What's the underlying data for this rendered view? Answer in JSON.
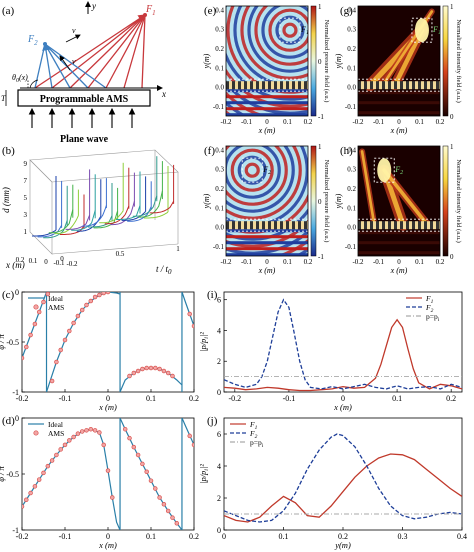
{
  "panel_letters": [
    "(a)",
    "(b)",
    "(c)",
    "(d)",
    "(e)",
    "(f)",
    "(g)",
    "(h)",
    "(i)",
    "(j)"
  ],
  "panel_a": {
    "ams_label": "Programmable AMS",
    "plane_wave_label": "Plane wave",
    "labels": {
      "y": "y",
      "x": "x",
      "v1": "v",
      "v2": "v",
      "F1": "F",
      "F1_sub": "1",
      "F2": "F",
      "F2_sub": "2",
      "theta": "θ",
      "theta_sub": "0",
      "theta_arg": "(x)",
      "T": "T"
    },
    "colors": {
      "F1": "#c8383c",
      "F2": "#3e7fc0"
    }
  },
  "panel_b": {
    "ylabel": "d (mm)",
    "yticks": [
      "1",
      "3",
      "5",
      "7",
      "9"
    ],
    "xlabel": "x (m)",
    "xticks": [
      "0.2",
      "0.1",
      "0",
      "-0.1",
      "-0.2"
    ],
    "tlabel": "t / t",
    "tlabel_sub": "0",
    "tticks": [
      "0",
      "0.5",
      "1"
    ]
  },
  "chart_data": [
    {
      "type": "line",
      "id": "c",
      "title": "",
      "xlabel": "x (m)",
      "ylabel": "φ / π",
      "xlim": [
        -0.2,
        0.2
      ],
      "ylim": [
        -1.0,
        0.0
      ],
      "xticks": [
        "-0.2",
        "-0.1",
        "0",
        "0.1",
        "0.2"
      ],
      "yticks": [
        "0",
        "-0.5",
        "-1"
      ],
      "legend": {
        "position": "top-left",
        "entries": [
          "Ideal",
          "AMS"
        ]
      },
      "series": [
        {
          "name": "Ideal",
          "style": "line",
          "color": "#2a7fa8",
          "segments": [
            {
              "x": [
                -0.215,
                -0.2,
                -0.18,
                -0.16,
                -0.143
              ],
              "y": [
                -0.82,
                -0.66,
                -0.43,
                -0.2,
                0.0
              ]
            },
            {
              "x": [
                -0.143,
                -0.12,
                -0.1,
                -0.08,
                -0.06,
                -0.04,
                -0.02,
                0.0,
                0.02,
                0.028
              ],
              "y": [
                -1.0,
                -0.7,
                -0.48,
                -0.31,
                -0.18,
                -0.09,
                -0.03,
                0.0,
                -0.01,
                -0.02
              ]
            },
            {
              "x": [
                0.028,
                0.04,
                0.06,
                0.08,
                0.1,
                0.12,
                0.14,
                0.16,
                0.172
              ],
              "y": [
                -1.0,
                -0.88,
                -0.81,
                -0.77,
                -0.76,
                -0.77,
                -0.81,
                -0.88,
                -0.93
              ]
            },
            {
              "x": [
                0.172,
                0.18,
                0.2,
                0.215
              ],
              "y": [
                -0.0,
                -0.1,
                -0.34,
                -0.52
              ]
            }
          ]
        },
        {
          "name": "AMS",
          "style": "marker",
          "color": "#d9534f",
          "x": [
            -0.2,
            -0.19,
            -0.18,
            -0.17,
            -0.16,
            -0.15,
            -0.14,
            -0.13,
            -0.12,
            -0.11,
            -0.1,
            -0.09,
            -0.08,
            -0.07,
            -0.06,
            -0.05,
            -0.04,
            -0.03,
            -0.02,
            -0.01,
            0.0,
            0.05,
            0.06,
            0.07,
            0.08,
            0.09,
            0.1,
            0.11,
            0.12,
            0.13,
            0.14,
            0.15,
            0.19,
            0.2
          ],
          "y": [
            -0.66,
            -0.55,
            -0.43,
            -0.32,
            -0.2,
            -0.1,
            -0.02,
            -0.89,
            -0.7,
            -0.58,
            -0.48,
            -0.39,
            -0.31,
            -0.24,
            -0.18,
            -0.13,
            -0.09,
            -0.05,
            -0.03,
            -0.01,
            0.0,
            -0.84,
            -0.81,
            -0.79,
            -0.77,
            -0.76,
            -0.76,
            -0.76,
            -0.77,
            -0.79,
            -0.81,
            -0.84,
            -0.22,
            -0.34
          ]
        }
      ]
    },
    {
      "type": "line",
      "id": "d",
      "title": "",
      "xlabel": "x (m)",
      "ylabel": "φ / π",
      "xlim": [
        -0.2,
        0.2
      ],
      "ylim": [
        -1.0,
        0.0
      ],
      "xticks": [
        "-0.2",
        "-0.1",
        "0",
        "0.1",
        "0.2"
      ],
      "yticks": [
        "0",
        "-0.5",
        "-1"
      ],
      "legend": {
        "position": "top-left",
        "entries": [
          "Ideal",
          "AMS"
        ]
      },
      "series": [
        {
          "name": "Ideal",
          "style": "line",
          "color": "#2a7fa8",
          "segments": [
            {
              "x": [
                -0.215,
                -0.2,
                -0.18,
                -0.16,
                -0.14,
                -0.12,
                -0.1,
                -0.08,
                -0.06,
                -0.04,
                -0.02,
                -0.01,
                0.0,
                0.01,
                0.02,
                0.028
              ],
              "y": [
                -0.88,
                -0.79,
                -0.67,
                -0.55,
                -0.43,
                -0.33,
                -0.24,
                -0.17,
                -0.12,
                -0.1,
                -0.13,
                -0.24,
                -0.47,
                -0.71,
                -0.93,
                -1.0
              ]
            },
            {
              "x": [
                0.028,
                0.04,
                0.06,
                0.08,
                0.1,
                0.12,
                0.14,
                0.16,
                0.172
              ],
              "y": [
                0.0,
                -0.1,
                -0.26,
                -0.41,
                -0.56,
                -0.71,
                -0.83,
                -0.94,
                -1.0
              ]
            },
            {
              "x": [
                0.172,
                0.18,
                0.2,
                0.215
              ],
              "y": [
                0.0,
                -0.07,
                -0.24,
                -0.37
              ]
            }
          ]
        },
        {
          "name": "AMS",
          "style": "marker",
          "color": "#d9534f",
          "x": [
            -0.2,
            -0.19,
            -0.18,
            -0.17,
            -0.16,
            -0.15,
            -0.14,
            -0.13,
            -0.12,
            -0.11,
            -0.1,
            -0.09,
            -0.08,
            -0.07,
            -0.06,
            -0.05,
            -0.04,
            -0.03,
            -0.02,
            -0.01,
            0.0,
            0.01,
            0.04,
            0.05,
            0.06,
            0.07,
            0.08,
            0.09,
            0.1,
            0.11,
            0.12,
            0.13,
            0.14,
            0.15,
            0.16,
            0.19,
            0.2
          ],
          "y": [
            -0.79,
            -0.73,
            -0.67,
            -0.61,
            -0.55,
            -0.49,
            -0.43,
            -0.38,
            -0.33,
            -0.28,
            -0.24,
            -0.2,
            -0.17,
            -0.14,
            -0.12,
            -0.11,
            -0.1,
            -0.11,
            -0.13,
            -0.24,
            -0.47,
            -0.71,
            -0.1,
            -0.18,
            -0.26,
            -0.33,
            -0.41,
            -0.48,
            -0.56,
            -0.63,
            -0.71,
            -0.77,
            -0.83,
            -0.89,
            -0.94,
            -0.16,
            -0.24
          ]
        }
      ]
    },
    {
      "type": "line",
      "id": "i",
      "title": "",
      "xlabel": "x (m)",
      "ylabel": "|p/p",
      "ylabel_sub": "i",
      "ylabel_sup": "|²",
      "xlim": [
        -0.22,
        0.22
      ],
      "ylim": [
        0,
        6.5
      ],
      "xticks": [
        "-0.2",
        "-0.1",
        "0",
        "0.1",
        "0.2"
      ],
      "yticks": [
        "0",
        "2",
        "4",
        "6"
      ],
      "legend": {
        "position": "top-right",
        "entries": [
          "F1",
          "F2",
          "p=p_i"
        ]
      },
      "series": [
        {
          "name": "F1",
          "style": "solid",
          "color": "#c0392b",
          "x": [
            -0.22,
            -0.2,
            -0.18,
            -0.16,
            -0.14,
            -0.12,
            -0.1,
            -0.08,
            -0.06,
            -0.04,
            -0.02,
            0.0,
            0.02,
            0.04,
            0.06,
            0.07,
            0.08,
            0.09,
            0.1,
            0.11,
            0.12,
            0.13,
            0.14,
            0.16,
            0.18,
            0.2,
            0.22
          ],
          "y": [
            0.3,
            0.25,
            0.15,
            0.2,
            0.3,
            0.25,
            0.15,
            0.1,
            0.1,
            0.15,
            0.2,
            0.35,
            0.25,
            0.3,
            0.9,
            1.8,
            3.0,
            4.2,
            4.7,
            4.2,
            2.8,
            1.5,
            0.6,
            0.2,
            0.5,
            0.4,
            0.2
          ]
        },
        {
          "name": "F2",
          "style": "dashed",
          "color": "#1f3f99",
          "x": [
            -0.22,
            -0.2,
            -0.18,
            -0.16,
            -0.15,
            -0.14,
            -0.13,
            -0.12,
            -0.11,
            -0.1,
            -0.09,
            -0.08,
            -0.07,
            -0.06,
            -0.04,
            -0.02,
            0.0,
            0.02,
            0.04,
            0.06,
            0.08,
            0.1,
            0.12,
            0.14,
            0.16,
            0.18,
            0.2,
            0.22
          ],
          "y": [
            0.8,
            0.5,
            0.3,
            0.5,
            1.0,
            2.0,
            3.6,
            5.2,
            6.0,
            5.5,
            3.8,
            2.0,
            0.8,
            0.3,
            0.2,
            0.35,
            0.2,
            0.35,
            0.5,
            0.3,
            0.2,
            0.4,
            0.2,
            0.3,
            0.35,
            0.2,
            0.5,
            0.3
          ]
        },
        {
          "name": "p=p_i",
          "style": "dashdot",
          "color": "#aaaaaa",
          "x": [
            -0.22,
            0.22
          ],
          "y": [
            1.0,
            1.0
          ]
        }
      ]
    },
    {
      "type": "line",
      "id": "j",
      "title": "",
      "xlabel": "y(m)",
      "ylabel": "|p/p",
      "ylabel_sub": "i",
      "ylabel_sup": "|²",
      "xlim": [
        0,
        0.4
      ],
      "ylim": [
        0,
        7
      ],
      "xticks": [
        "0",
        "0.1",
        "0.2",
        "0.3",
        "0.4"
      ],
      "yticks": [
        "0",
        "2",
        "4",
        "6"
      ],
      "legend": {
        "position": "top-left",
        "entries": [
          "F1",
          "F2",
          "p=p_i"
        ]
      },
      "series": [
        {
          "name": "F1",
          "style": "solid",
          "color": "#c0392b",
          "x": [
            0.0,
            0.02,
            0.04,
            0.06,
            0.08,
            0.1,
            0.12,
            0.14,
            0.16,
            0.18,
            0.2,
            0.22,
            0.24,
            0.26,
            0.28,
            0.3,
            0.32,
            0.34,
            0.36,
            0.38,
            0.4
          ],
          "y": [
            0.9,
            0.6,
            0.5,
            0.8,
            1.5,
            2.1,
            1.7,
            0.9,
            0.8,
            1.5,
            2.4,
            3.3,
            4.0,
            4.5,
            4.75,
            4.7,
            4.4,
            3.8,
            3.2,
            2.6,
            2.1
          ]
        },
        {
          "name": "F2",
          "style": "dashed",
          "color": "#1f3f99",
          "x": [
            0.0,
            0.02,
            0.04,
            0.06,
            0.08,
            0.1,
            0.12,
            0.14,
            0.16,
            0.18,
            0.19,
            0.2,
            0.22,
            0.24,
            0.26,
            0.28,
            0.3,
            0.32,
            0.34,
            0.36,
            0.38,
            0.4
          ],
          "y": [
            1.2,
            0.9,
            0.6,
            0.5,
            0.6,
            1.2,
            2.3,
            3.8,
            5.0,
            5.8,
            6.0,
            5.9,
            5.2,
            4.0,
            2.6,
            1.5,
            0.9,
            0.7,
            0.8,
            1.0,
            1.1,
            1.0
          ]
        },
        {
          "name": "p=p_i",
          "style": "dashdot",
          "color": "#aaaaaa",
          "x": [
            0.0,
            0.4
          ],
          "y": [
            1.0,
            1.0
          ]
        }
      ]
    },
    {
      "type": "heatmap",
      "id": "e",
      "xlabel": "x (m)",
      "ylabel": "y(m)",
      "xticks": [
        "-0.2",
        "-0.1",
        "0",
        "0.1",
        "0.2"
      ],
      "yticks": [
        "0.4",
        "0.3",
        "0.2",
        "0.1",
        "0.0",
        "-0.1"
      ],
      "colorbar_label": "Normalized pressure field (a.u.)",
      "colorbar_ticks": [
        "1",
        "0",
        "-1"
      ],
      "focus_label": "F",
      "focus_sub": "1"
    },
    {
      "type": "heatmap",
      "id": "f",
      "xlabel": "x (m)",
      "ylabel": "y(m)",
      "xticks": [
        "-0.2",
        "-0.1",
        "0",
        "0.1",
        "0.2"
      ],
      "yticks": [
        "0.4",
        "0.3",
        "0.2",
        "0.1",
        "0.0",
        "-0.1"
      ],
      "colorbar_label": "Normalized pressure field (a.u.)",
      "colorbar_ticks": [
        "1",
        "0",
        "-1"
      ],
      "focus_label": "F",
      "focus_sub": "2"
    },
    {
      "type": "heatmap",
      "id": "g",
      "xlabel": "x (m)",
      "ylabel": "y(m)",
      "xticks": [
        "-0.2",
        "-0.1",
        "0",
        "0.1",
        "0.2"
      ],
      "yticks": [
        "0.4",
        "0.3",
        "0.2",
        "0.1",
        "0.0",
        "-0.1"
      ],
      "colorbar_label": "Normalized intensity field (a.u.)",
      "colorbar_ticks": [
        "1",
        "0"
      ],
      "focus_label": "F",
      "focus_sub": "1"
    },
    {
      "type": "heatmap",
      "id": "h",
      "xlabel": "x (m)",
      "ylabel": "y(m)",
      "xticks": [
        "-0.2",
        "-0.1",
        "0",
        "0.1",
        "0.2"
      ],
      "yticks": [
        "0.4",
        "0.3",
        "0.2",
        "0.1",
        "0.0",
        "-0.1"
      ],
      "colorbar_label": "Normalized intensity field (a.u.)",
      "colorbar_ticks": [
        "1",
        "0"
      ],
      "focus_label": "F",
      "focus_sub": "2"
    }
  ]
}
